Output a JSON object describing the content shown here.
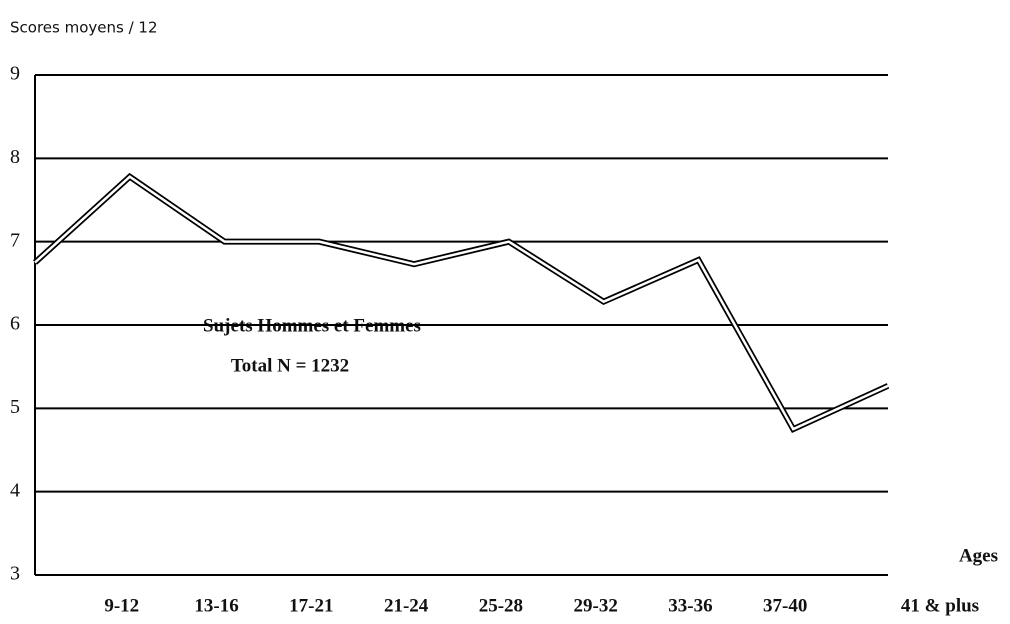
{
  "chart_data": {
    "type": "line",
    "ylabel": "Scores moyens / 12",
    "xlabel": "Ages",
    "annotations": [
      "Sujets Hommes et Femmes",
      "Total N = 1232"
    ],
    "categories": [
      null,
      "9-12",
      "13-16",
      "17-21",
      "21-24",
      "25-28",
      "29-32",
      "33-36",
      "37-40",
      "41 & plus"
    ],
    "values": [
      6.75,
      7.78,
      7.0,
      7.0,
      6.73,
      7.0,
      6.28,
      6.78,
      4.75,
      5.27
    ],
    "color": "#000000",
    "ylim": [
      3,
      9
    ],
    "yticks": [
      3,
      4,
      5,
      6,
      7,
      8,
      9
    ],
    "grid": true
  }
}
